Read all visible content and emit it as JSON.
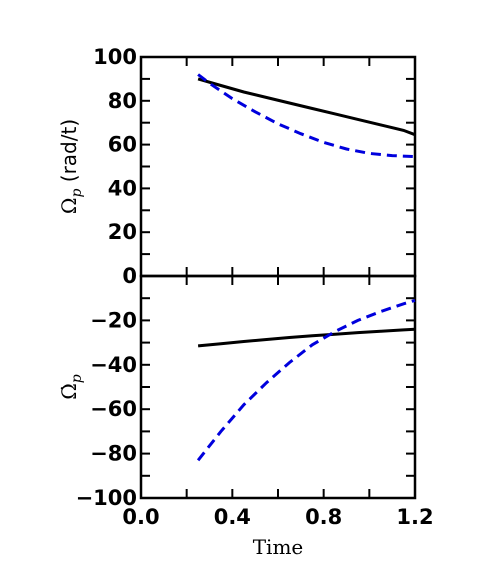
{
  "chart_data": [
    {
      "type": "line",
      "panel": "top",
      "ylabel_symbol": "Ω",
      "ylabel_sub": "p",
      "ylabel_unit": "(rad/t)",
      "xlim": [
        0.0,
        1.2
      ],
      "ylim": [
        0,
        100
      ],
      "yticks": [
        "0",
        "20",
        "40",
        "60",
        "80",
        "100"
      ],
      "series": [
        {
          "style": "solid",
          "color": "#000000",
          "x": [
            0.25,
            0.35,
            0.45,
            0.55,
            0.65,
            0.75,
            0.85,
            0.95,
            1.05,
            1.15,
            1.2
          ],
          "y": [
            90,
            87,
            84,
            81.5,
            79,
            76.5,
            74,
            71.5,
            69,
            66.5,
            64.5
          ]
        },
        {
          "style": "dashed",
          "color": "#0000dd",
          "x": [
            0.25,
            0.3,
            0.4,
            0.5,
            0.6,
            0.7,
            0.8,
            0.9,
            1.0,
            1.1,
            1.2
          ],
          "y": [
            92,
            88,
            81,
            75,
            69.5,
            65,
            61,
            58,
            56,
            55,
            54.5
          ]
        }
      ]
    },
    {
      "type": "line",
      "panel": "bottom",
      "ylabel_symbol": "Ω̇",
      "ylabel_sub": "p",
      "xlabel": "Time",
      "xlim": [
        0.0,
        1.2
      ],
      "ylim": [
        -100,
        0
      ],
      "xticks": [
        "0.0",
        "0.4",
        "0.8",
        "1.2"
      ],
      "yticks": [
        "−100",
        "−80",
        "−60",
        "−40",
        "−20"
      ],
      "series": [
        {
          "style": "solid",
          "color": "#000000",
          "x": [
            0.25,
            0.35,
            0.45,
            0.55,
            0.65,
            0.75,
            0.85,
            0.95,
            1.05,
            1.15,
            1.2
          ],
          "y": [
            -31.5,
            -30.5,
            -29.5,
            -28.6,
            -27.7,
            -26.9,
            -26.2,
            -25.5,
            -24.9,
            -24.3,
            -24
          ]
        },
        {
          "style": "dashed",
          "color": "#0000dd",
          "x": [
            0.25,
            0.35,
            0.45,
            0.55,
            0.65,
            0.75,
            0.85,
            0.95,
            1.05,
            1.15,
            1.2
          ],
          "y": [
            -83,
            -70,
            -58,
            -48,
            -39,
            -31,
            -25,
            -20,
            -16,
            -12.5,
            -11
          ]
        }
      ]
    }
  ]
}
